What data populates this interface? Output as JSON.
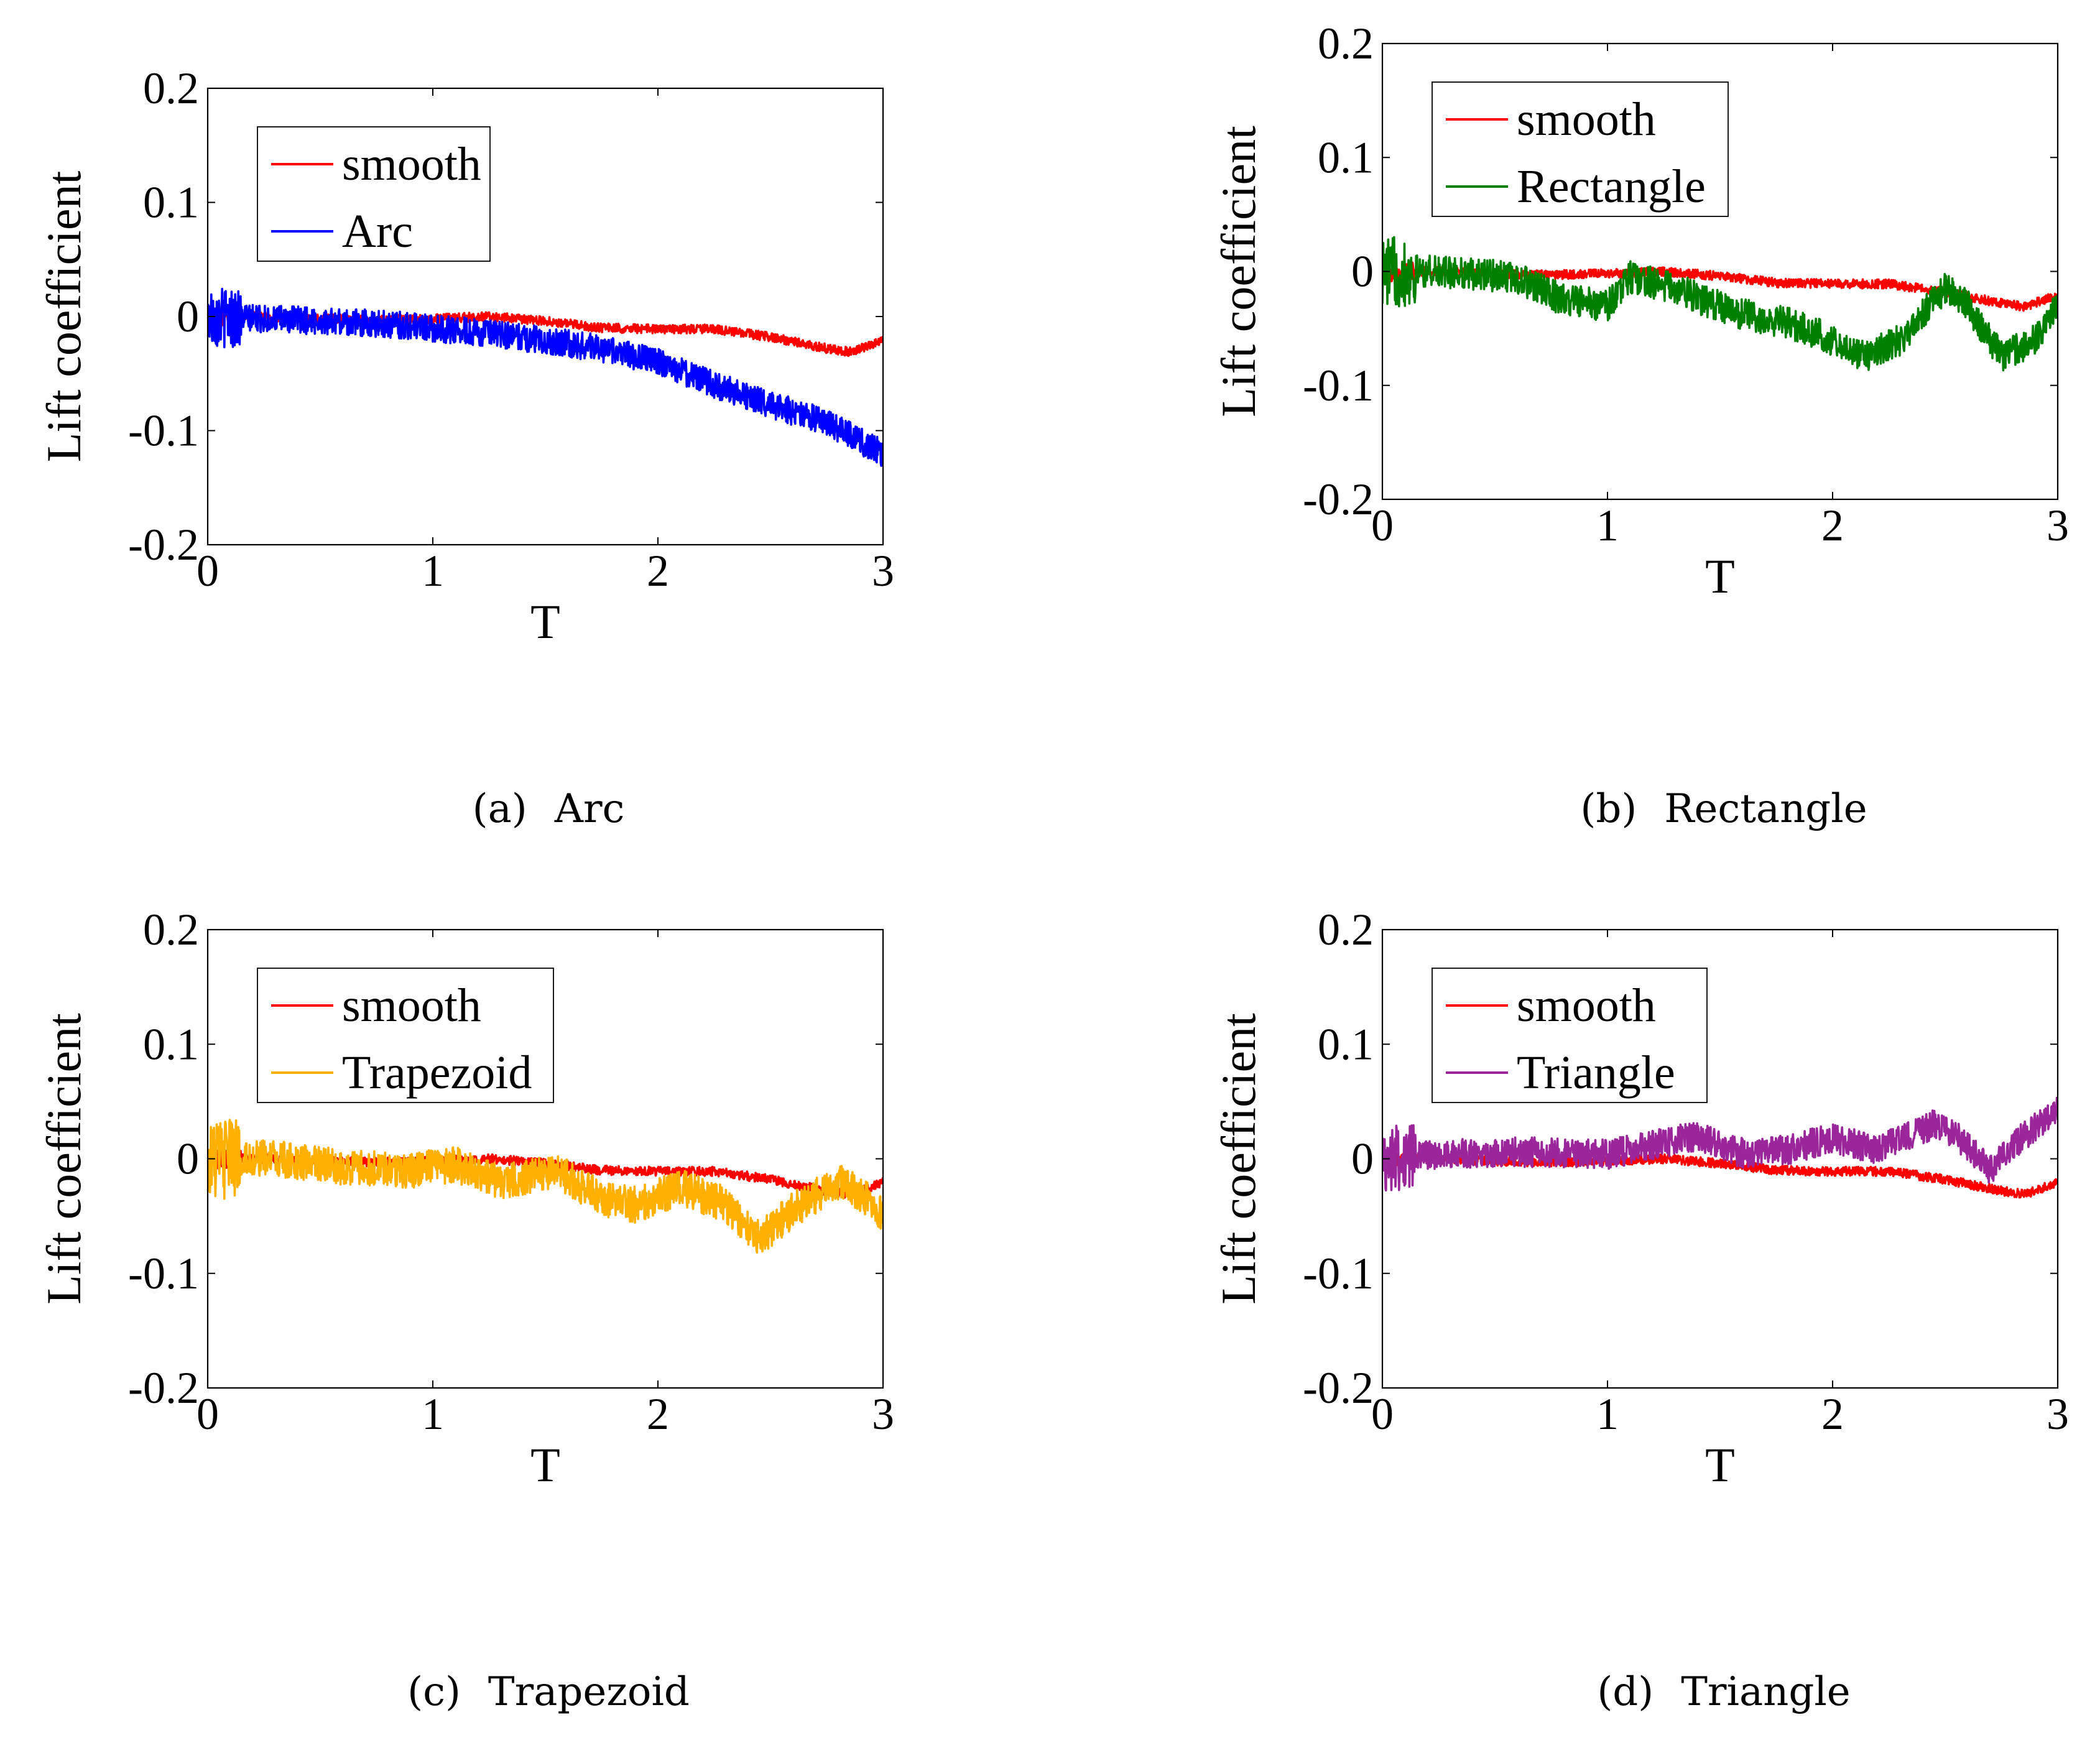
{
  "chart_data": [
    {
      "type": "line",
      "panel": "a",
      "caption_letter": "(a)",
      "caption_name": "Arc",
      "xlabel": "T",
      "ylabel": "Lift coefficient",
      "xlim": [
        0,
        3
      ],
      "ylim": [
        -0.2,
        0.2
      ],
      "xticks": [
        "0",
        "1",
        "2",
        "3"
      ],
      "yticks": [
        "-0.2",
        "-0.1",
        "0",
        "0.1",
        "0.2"
      ],
      "grid": false,
      "legend_position": "top-left",
      "series": [
        {
          "name": "smooth",
          "color": "#ff0000",
          "x": [
            0,
            0.25,
            0.5,
            0.75,
            1.0,
            1.25,
            1.5,
            1.75,
            2.0,
            2.25,
            2.5,
            2.75,
            2.85,
            3.0
          ],
          "y": [
            0,
            0.0,
            -0.002,
            -0.003,
            -0.002,
            0.0,
            -0.004,
            -0.01,
            -0.011,
            -0.011,
            -0.018,
            -0.028,
            -0.031,
            -0.021
          ],
          "noise": 0.004
        },
        {
          "name": "Arc",
          "color": "#0000ff",
          "x": [
            0,
            0.25,
            0.5,
            0.75,
            1.0,
            1.25,
            1.5,
            1.75,
            2.0,
            2.25,
            2.5,
            2.75,
            3.0
          ],
          "y": [
            0,
            -0.002,
            -0.004,
            -0.006,
            -0.01,
            -0.015,
            -0.021,
            -0.028,
            -0.04,
            -0.06,
            -0.077,
            -0.093,
            -0.12
          ],
          "noise": 0.012
        }
      ]
    },
    {
      "type": "line",
      "panel": "b",
      "caption_letter": "(b)",
      "caption_name": "Rectangle",
      "xlabel": "T",
      "ylabel": "Lift coefficient",
      "xlim": [
        0,
        3
      ],
      "ylim": [
        -0.2,
        0.2
      ],
      "xticks": [
        "0",
        "1",
        "2",
        "3"
      ],
      "yticks": [
        "-0.2",
        "-0.1",
        "0",
        "0.1",
        "0.2"
      ],
      "grid": false,
      "legend_position": "top-left",
      "series": [
        {
          "name": "smooth",
          "color": "#ff0000",
          "x": [
            0,
            0.25,
            0.5,
            0.75,
            1.0,
            1.25,
            1.5,
            1.75,
            2.0,
            2.25,
            2.5,
            2.75,
            2.85,
            3.0
          ],
          "y": [
            0,
            0.0,
            -0.002,
            -0.003,
            -0.002,
            0.0,
            -0.004,
            -0.01,
            -0.011,
            -0.011,
            -0.018,
            -0.028,
            -0.031,
            -0.021
          ],
          "noise": 0.004
        },
        {
          "name": "Rectangle",
          "color": "#008000",
          "x": [
            0,
            0.2,
            0.4,
            0.6,
            0.8,
            1.0,
            1.1,
            1.3,
            1.55,
            1.8,
            2.0,
            2.15,
            2.3,
            2.5,
            2.6,
            2.75,
            2.9,
            3.0
          ],
          "y": [
            0,
            0.0,
            -0.002,
            -0.006,
            -0.025,
            -0.03,
            -0.005,
            -0.015,
            -0.035,
            -0.045,
            -0.06,
            -0.075,
            -0.06,
            -0.015,
            -0.03,
            -0.075,
            -0.06,
            -0.03
          ],
          "noise": 0.014
        }
      ]
    },
    {
      "type": "line",
      "panel": "c",
      "caption_letter": "(c)",
      "caption_name": "Trapezoid",
      "xlabel": "T",
      "ylabel": "Lift coefficient",
      "xlim": [
        0,
        3
      ],
      "ylim": [
        -0.2,
        0.2
      ],
      "xticks": [
        "0",
        "1",
        "2",
        "3"
      ],
      "yticks": [
        "-0.2",
        "-0.1",
        "0",
        "0.1",
        "0.2"
      ],
      "grid": false,
      "legend_position": "top-left",
      "series": [
        {
          "name": "smooth",
          "color": "#ff0000",
          "x": [
            0,
            0.25,
            0.5,
            0.75,
            1.0,
            1.25,
            1.5,
            1.75,
            2.0,
            2.25,
            2.5,
            2.75,
            2.85,
            3.0
          ],
          "y": [
            0,
            0.0,
            -0.002,
            -0.003,
            -0.002,
            0.0,
            -0.004,
            -0.01,
            -0.011,
            -0.011,
            -0.018,
            -0.028,
            -0.031,
            -0.021
          ],
          "noise": 0.004
        },
        {
          "name": "Trapezoid",
          "color": "#ffb000",
          "x": [
            0,
            0.3,
            0.6,
            0.9,
            1.1,
            1.3,
            1.55,
            1.75,
            1.9,
            2.1,
            2.3,
            2.45,
            2.6,
            2.8,
            2.9,
            3.0
          ],
          "y": [
            0,
            0.0,
            -0.008,
            -0.01,
            -0.005,
            -0.02,
            -0.01,
            -0.035,
            -0.04,
            -0.025,
            -0.04,
            -0.07,
            -0.045,
            -0.02,
            -0.03,
            -0.05
          ],
          "noise": 0.016
        }
      ]
    },
    {
      "type": "line",
      "panel": "d",
      "caption_letter": "(d)",
      "caption_name": "Triangle",
      "xlabel": "T",
      "ylabel": "Lift coefficient",
      "xlim": [
        0,
        3
      ],
      "ylim": [
        -0.2,
        0.2
      ],
      "xticks": [
        "0",
        "1",
        "2",
        "3"
      ],
      "yticks": [
        "-0.2",
        "-0.1",
        "0",
        "0.1",
        "0.2"
      ],
      "grid": false,
      "legend_position": "top-left",
      "series": [
        {
          "name": "smooth",
          "color": "#ff0000",
          "x": [
            0,
            0.25,
            0.5,
            0.75,
            1.0,
            1.25,
            1.5,
            1.75,
            2.0,
            2.25,
            2.5,
            2.75,
            2.85,
            3.0
          ],
          "y": [
            0,
            0.0,
            -0.002,
            -0.003,
            -0.002,
            0.0,
            -0.004,
            -0.01,
            -0.011,
            -0.011,
            -0.018,
            -0.028,
            -0.031,
            -0.021
          ],
          "noise": 0.004
        },
        {
          "name": "Triangle",
          "color": "#9b259b",
          "x": [
            0,
            0.3,
            0.6,
            0.8,
            1.0,
            1.2,
            1.4,
            1.6,
            1.8,
            2.0,
            2.2,
            2.45,
            2.55,
            2.7,
            2.85,
            3.0
          ],
          "y": [
            0,
            0.004,
            0.006,
            0.005,
            0.004,
            0.012,
            0.02,
            0.005,
            0.008,
            0.018,
            0.008,
            0.03,
            0.02,
            -0.01,
            0.02,
            0.045
          ],
          "noise": 0.013
        }
      ]
    }
  ]
}
